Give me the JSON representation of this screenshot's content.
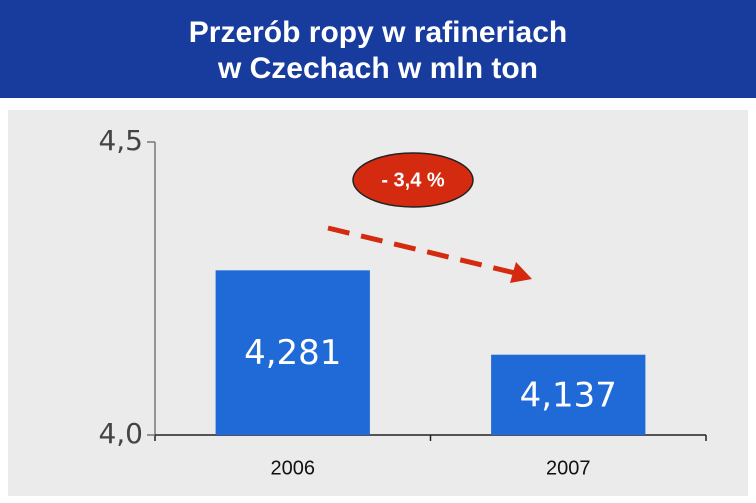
{
  "chart_data": {
    "type": "bar",
    "title_lines": [
      "Przerób ropy w rafineriach",
      "w Czechach w mln ton"
    ],
    "categories": [
      "2006",
      "2007"
    ],
    "values": [
      4.281,
      4.137
    ],
    "value_labels": [
      "4,281",
      "4,137"
    ],
    "color": "#1f6ad6",
    "ylim": [
      4.0,
      4.5
    ],
    "yticks": [
      {
        "value": 4.0,
        "label": "4,0"
      },
      {
        "value": 4.5,
        "label": "4,5"
      }
    ],
    "annotation": "- 3,4 %",
    "annotation_color": "#d42a10",
    "grid": false
  }
}
